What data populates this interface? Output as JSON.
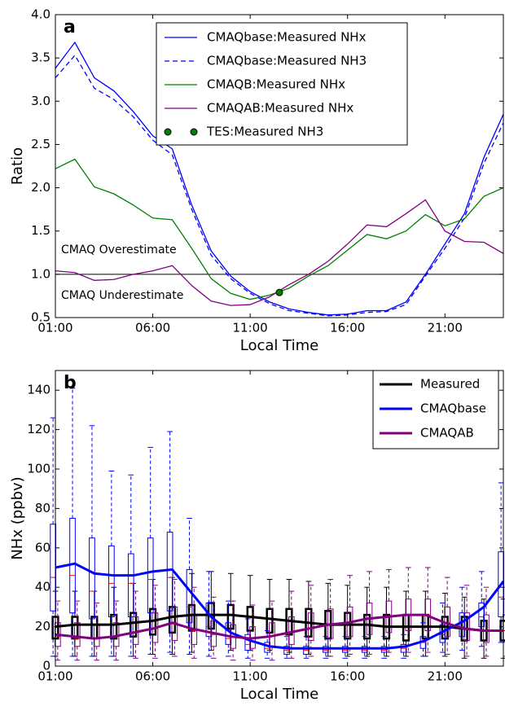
{
  "chart_data": [
    {
      "type": "line",
      "panel_label": "a",
      "ylabel": "Ratio",
      "xlabel": "Local Time",
      "x": [
        1,
        2,
        3,
        4,
        5,
        6,
        7,
        8,
        9,
        10,
        11,
        12,
        13,
        14,
        15,
        16,
        17,
        18,
        19,
        20,
        21,
        22,
        23,
        24
      ],
      "xlim": [
        1,
        24
      ],
      "xticks": [
        {
          "value": 1,
          "label": "01:00"
        },
        {
          "value": 6,
          "label": "06:00"
        },
        {
          "value": 11,
          "label": "11:00"
        },
        {
          "value": 16,
          "label": "16:00"
        },
        {
          "value": 21,
          "label": "21:00"
        }
      ],
      "ylim": [
        0.5,
        4.0
      ],
      "yticks": [
        0.5,
        {
          "value": 1,
          "label": "1.0"
        },
        1.5,
        {
          "value": 2,
          "label": "2.0"
        },
        2.5,
        {
          "value": 3,
          "label": "3.0"
        },
        3.5,
        {
          "value": 4,
          "label": "4.0"
        }
      ],
      "reference_line": {
        "value": 1,
        "label": {
          "value": 1,
          "label": "1.0"
        }
      },
      "annotations": [
        "CMAQ Overestimate",
        "CMAQ Underestimate"
      ],
      "series": [
        {
          "name": "CMAQbase:Measured NHx",
          "color": "#0000ff",
          "dashed": false,
          "values": [
            3.38,
            3.68,
            3.27,
            3.12,
            2.88,
            2.6,
            2.45,
            1.8,
            1.27,
            0.98,
            0.8,
            0.68,
            0.6,
            0.56,
            0.53,
            0.54,
            0.58,
            0.58,
            0.68,
            1.0,
            1.35,
            1.7,
            2.35,
            2.85
          ]
        },
        {
          "name": "CMAQbase:Measured NH3",
          "color": "#0000ff",
          "dashed": true,
          "values": [
            3.27,
            3.53,
            3.15,
            3.02,
            2.82,
            2.55,
            2.38,
            1.75,
            1.22,
            0.95,
            0.78,
            0.66,
            0.58,
            0.55,
            0.52,
            0.53,
            0.56,
            0.57,
            0.65,
            0.98,
            1.3,
            1.65,
            2.28,
            2.75
          ]
        },
        {
          "name": "CMAQB:Measured NHx",
          "color": "#008000",
          "dashed": false,
          "values": [
            2.22,
            2.33,
            2.01,
            1.93,
            1.8,
            1.65,
            1.63,
            1.3,
            0.95,
            0.78,
            0.71,
            0.76,
            0.84,
            0.98,
            1.1,
            1.28,
            1.46,
            1.41,
            1.5,
            1.69,
            1.56,
            1.64,
            1.9,
            2.0
          ]
        },
        {
          "name": "CMAQAB:Measured NHx",
          "color": "#800080",
          "dashed": false,
          "values": [
            1.04,
            1.02,
            0.93,
            0.94,
            1.0,
            1.04,
            1.1,
            0.87,
            0.69,
            0.64,
            0.65,
            0.74,
            0.88,
            1.0,
            1.15,
            1.35,
            1.57,
            1.55,
            1.7,
            1.86,
            1.5,
            1.38,
            1.37,
            1.24
          ]
        }
      ],
      "markers": {
        "name": "TES:Measured NH3",
        "color": "#008000",
        "x": [
          12.5
        ],
        "values": [
          0.79
        ]
      }
    },
    {
      "type": "box",
      "panel_label": "b",
      "ylabel": "NHx (ppbv)",
      "xlabel": "Local Time",
      "x": [
        1,
        2,
        3,
        4,
        5,
        6,
        7,
        8,
        9,
        10,
        11,
        12,
        13,
        14,
        15,
        16,
        17,
        18,
        19,
        20,
        21,
        22,
        23,
        24
      ],
      "xlim": [
        1,
        24
      ],
      "xticks": [
        {
          "value": 1,
          "label": "01:00"
        },
        {
          "value": 6,
          "label": "06:00"
        },
        {
          "value": 11,
          "label": "11:00"
        },
        {
          "value": 16,
          "label": "16:00"
        },
        {
          "value": 21,
          "label": "21:00"
        }
      ],
      "ylim": [
        0,
        150
      ],
      "yticks": [
        0,
        20,
        40,
        60,
        80,
        100,
        120,
        140
      ],
      "median_color": "#ff0000",
      "series": [
        {
          "name": "Measured",
          "color": "#000000",
          "values": [
            20,
            21,
            21,
            21,
            22,
            23,
            25,
            26,
            26,
            26,
            25,
            24,
            23,
            22,
            21,
            21,
            21,
            20,
            20,
            20,
            20,
            19,
            18,
            18
          ],
          "low": [
            5,
            5,
            5,
            5,
            5,
            6,
            6,
            7,
            8,
            8,
            8,
            8,
            7,
            6,
            5,
            5,
            5,
            5,
            5,
            5,
            5,
            4,
            4,
            4
          ],
          "q1": [
            14,
            14,
            14,
            14,
            15,
            16,
            17,
            18,
            19,
            19,
            18,
            17,
            16,
            15,
            14,
            14,
            14,
            14,
            13,
            14,
            14,
            13,
            13,
            13
          ],
          "median": [
            20,
            21,
            21,
            21,
            22,
            23,
            25,
            26,
            26,
            26,
            25,
            24,
            23,
            22,
            21,
            21,
            21,
            20,
            20,
            20,
            20,
            19,
            18,
            18
          ],
          "q3": [
            25,
            25,
            25,
            26,
            27,
            29,
            30,
            31,
            32,
            31,
            30,
            29,
            29,
            29,
            28,
            27,
            26,
            26,
            26,
            26,
            25,
            25,
            23,
            23
          ],
          "high": [
            38,
            38,
            38,
            40,
            42,
            44,
            45,
            47,
            48,
            47,
            46,
            44,
            44,
            43,
            42,
            41,
            40,
            40,
            38,
            38,
            37,
            35,
            34,
            34
          ]
        },
        {
          "name": "CMAQbase",
          "color": "#0000ff",
          "values": [
            50,
            52,
            47,
            46,
            46,
            48,
            49,
            37,
            25,
            17,
            13,
            10,
            9,
            9,
            9,
            9,
            9,
            9,
            10,
            13,
            18,
            23,
            30,
            43
          ],
          "low": [
            5,
            5,
            5,
            5,
            5,
            6,
            7,
            6,
            5,
            5,
            4,
            4,
            4,
            4,
            4,
            4,
            4,
            4,
            4,
            5,
            7,
            8,
            10,
            12
          ],
          "q1": [
            28,
            27,
            24,
            25,
            25,
            27,
            28,
            22,
            15,
            11,
            8,
            7,
            6,
            6,
            7,
            7,
            7,
            7,
            7,
            9,
            12,
            15,
            20,
            25
          ],
          "median": [
            45,
            46,
            38,
            42,
            42,
            44,
            45,
            30,
            20,
            14,
            11,
            9,
            8,
            8,
            8,
            8,
            8,
            8,
            9,
            12,
            16,
            20,
            25,
            35
          ],
          "q3": [
            72,
            75,
            65,
            61,
            57,
            65,
            68,
            49,
            32,
            22,
            16,
            12,
            10,
            10,
            10,
            10,
            10,
            10,
            11,
            15,
            21,
            27,
            32,
            58
          ],
          "high": [
            126,
            141,
            122,
            99,
            97,
            111,
            119,
            75,
            48,
            33,
            24,
            18,
            15,
            15,
            15,
            15,
            15,
            15,
            16,
            22,
            32,
            40,
            48,
            93
          ]
        },
        {
          "name": "CMAQAB",
          "color": "#800080",
          "values": [
            16,
            15,
            14,
            15,
            17,
            19,
            22,
            19,
            17,
            15,
            14,
            15,
            17,
            19,
            21,
            22,
            24,
            25,
            26,
            26,
            22,
            19,
            18,
            18
          ],
          "low": [
            3,
            3,
            3,
            3,
            4,
            4,
            5,
            4,
            4,
            3,
            3,
            3,
            4,
            5,
            5,
            6,
            6,
            7,
            7,
            7,
            6,
            5,
            5,
            5
          ],
          "q1": [
            10,
            10,
            10,
            10,
            11,
            12,
            13,
            11,
            10,
            9,
            9,
            10,
            11,
            13,
            14,
            15,
            16,
            17,
            18,
            18,
            15,
            13,
            12,
            12
          ],
          "median": [
            15,
            14,
            14,
            15,
            17,
            19,
            22,
            18,
            16,
            15,
            14,
            15,
            17,
            19,
            21,
            22,
            24,
            25,
            26,
            26,
            22,
            19,
            18,
            18
          ],
          "q3": [
            22,
            22,
            21,
            22,
            25,
            27,
            30,
            26,
            23,
            21,
            20,
            22,
            25,
            27,
            29,
            30,
            32,
            33,
            34,
            34,
            30,
            27,
            26,
            26
          ],
          "high": [
            33,
            33,
            32,
            33,
            38,
            41,
            44,
            40,
            35,
            33,
            31,
            33,
            38,
            41,
            44,
            46,
            48,
            49,
            50,
            50,
            45,
            41,
            40,
            40
          ]
        }
      ]
    }
  ]
}
